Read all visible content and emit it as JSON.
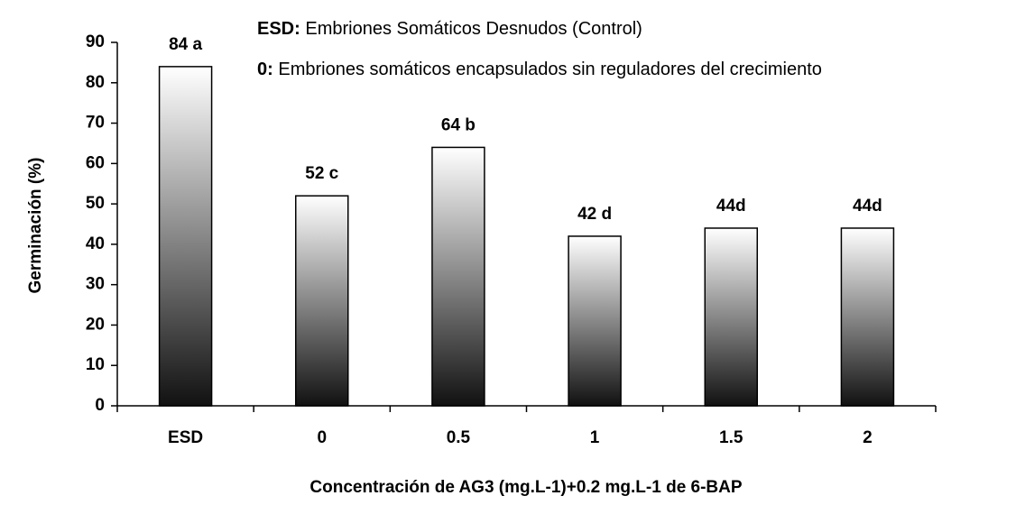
{
  "chart_data": {
    "type": "bar",
    "xlabel": "Concentración de AG3 (mg.L-1)+0.2 mg.L-1 de 6-BAP",
    "ylabel": "Germinación (%)",
    "annotations": [
      {
        "term": "ESD:",
        "text": "Embriones Somáticos Desnudos (Control)"
      },
      {
        "term": "0:",
        "text": "Embriones somáticos encapsulados sin reguladores del crecimiento"
      }
    ],
    "categories": [
      "ESD",
      "0",
      "0.5",
      "1",
      "1.5",
      "2"
    ],
    "values": [
      84,
      52,
      64,
      42,
      44,
      44
    ],
    "value_labels": [
      "84 a",
      "52 c",
      "64 b",
      "42 d",
      "44d",
      "44d"
    ],
    "color_top": "#ffffff",
    "color_bottom": "#111111",
    "ylim": [
      0,
      90
    ],
    "yticks": [
      0,
      10,
      20,
      30,
      40,
      50,
      60,
      70,
      80,
      90
    ]
  }
}
